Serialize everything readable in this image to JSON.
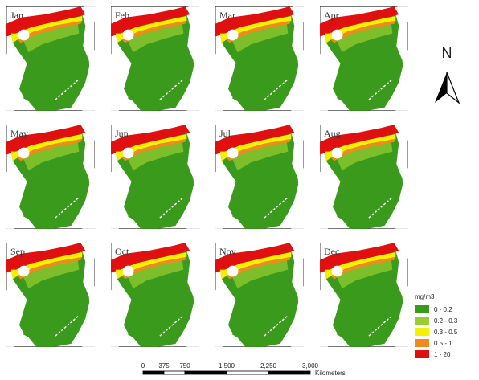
{
  "panels": [
    "Jan",
    "Feb",
    "Mar",
    "Apr",
    "May",
    "Jun",
    "Jul",
    "Aug",
    "Sep",
    "Oct",
    "Nov",
    "Dec"
  ],
  "north_arrow": "N",
  "legend": {
    "title": "mg/m3",
    "items": [
      {
        "label": "0 - 0.2",
        "color": "#3a9a1c"
      },
      {
        "label": "0.2 - 0.3",
        "color": "#9acd32"
      },
      {
        "label": "0.3 - 0.5",
        "color": "#f5f000"
      },
      {
        "label": "0.5 - 1",
        "color": "#f08a1c"
      },
      {
        "label": "1 - 20",
        "color": "#e01010"
      }
    ]
  },
  "scale_bar": {
    "labels": [
      "0",
      "375",
      "750",
      "1,500",
      "2,250",
      "3,000"
    ],
    "unit": "Kilometers"
  }
}
